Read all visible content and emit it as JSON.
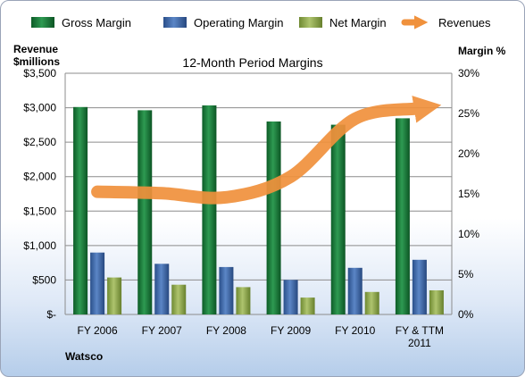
{
  "chart_data": {
    "type": "bar",
    "title": "12-Month Period Margins",
    "company": "Watsco",
    "left_axis_label": [
      "Revenue",
      "$millions"
    ],
    "right_axis_label": "Margin %",
    "categories": [
      [
        "FY 2006"
      ],
      [
        "FY 2007"
      ],
      [
        "FY 2008"
      ],
      [
        "FY 2009"
      ],
      [
        "FY 2010"
      ],
      [
        "FY & TTM",
        "2011"
      ]
    ],
    "left_axis": {
      "min": 0,
      "max": 3500,
      "step": 500,
      "tick_labels": [
        "$-",
        "$500",
        "$1,000",
        "$1,500",
        "$2,000",
        "$2,500",
        "$3,000",
        "$3,500"
      ]
    },
    "right_axis": {
      "min": 0,
      "max": 30,
      "step": 5,
      "tick_labels": [
        "0%",
        "5%",
        "10%",
        "15%",
        "20%",
        "25%",
        "30%"
      ]
    },
    "grid": true,
    "legend_position": "top",
    "series": [
      {
        "name": "Gross Margin",
        "kind": "bar",
        "axis": "right",
        "color": "#1e7a3f",
        "values": [
          25.8,
          25.4,
          26.0,
          24.0,
          23.6,
          24.4
        ]
      },
      {
        "name": "Operating Margin",
        "kind": "bar",
        "axis": "right",
        "color": "#3d67a8",
        "values": [
          7.7,
          6.3,
          5.9,
          4.3,
          5.8,
          6.8
        ]
      },
      {
        "name": "Net Margin",
        "kind": "bar",
        "axis": "right",
        "color": "#8ea84e",
        "values": [
          4.6,
          3.7,
          3.4,
          2.1,
          2.8,
          3.0
        ]
      },
      {
        "name": "Revenues",
        "kind": "line",
        "axis": "left",
        "color": "#f0913c",
        "values": [
          1780,
          1760,
          1700,
          2000,
          2840,
          2990
        ]
      }
    ]
  }
}
